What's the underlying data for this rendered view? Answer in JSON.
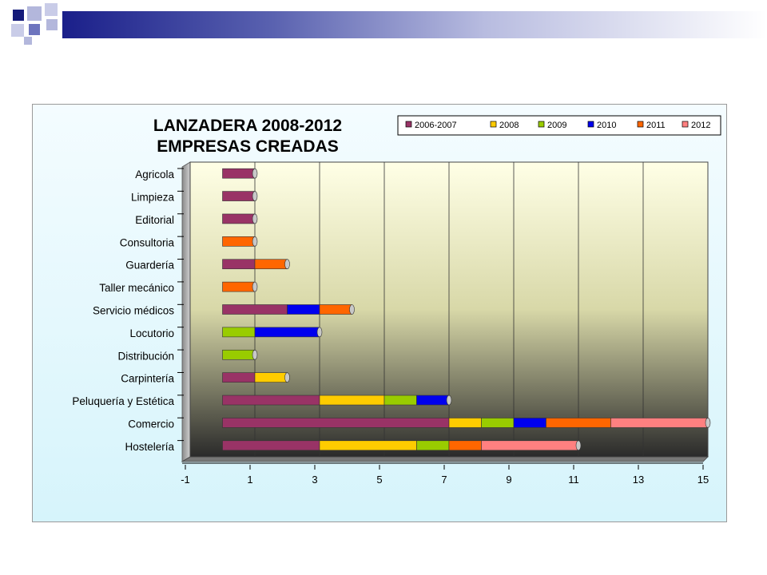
{
  "chart_data": {
    "type": "bar",
    "orientation": "horizontal",
    "stacked": true,
    "title": [
      "LANZADERA 2008-2012",
      "EMPRESAS CREADAS"
    ],
    "xlim": [
      -1,
      15
    ],
    "xticks": [
      "-1",
      "1",
      "3",
      "5",
      "7",
      "9",
      "11",
      "13",
      "15"
    ],
    "grid": true,
    "legend_position": "top-right",
    "categories": [
      "Agricola",
      "Limpieza",
      "Editorial",
      "Consultoria",
      "Guardería",
      "Taller mecánico",
      "Servicio médicos",
      "Locutorio",
      "Distribución",
      "Carpintería",
      "Peluquería y Estética",
      "Comercio",
      "Hostelería"
    ],
    "series": [
      {
        "name": "2006-2007",
        "color": "#993366",
        "values": [
          1,
          1,
          1,
          0,
          1,
          0,
          2,
          0,
          0,
          1,
          3,
          7,
          3
        ]
      },
      {
        "name": "2008",
        "color": "#ffcc00",
        "values": [
          0,
          0,
          0,
          0,
          0,
          0,
          0,
          0,
          0,
          1,
          2,
          1,
          3
        ]
      },
      {
        "name": "2009",
        "color": "#99cc00",
        "values": [
          0,
          0,
          0,
          0,
          0,
          0,
          0,
          1,
          1,
          0,
          1,
          1,
          1
        ]
      },
      {
        "name": "2010",
        "color": "#0000ee",
        "values": [
          0,
          0,
          0,
          0,
          0,
          0,
          1,
          2,
          0,
          0,
          1,
          1,
          0
        ]
      },
      {
        "name": "2011",
        "color": "#ff6600",
        "values": [
          0,
          0,
          0,
          1,
          1,
          1,
          1,
          0,
          0,
          0,
          0,
          2,
          1
        ]
      },
      {
        "name": "2012",
        "color": "#ff8080",
        "values": [
          0,
          0,
          0,
          0,
          0,
          0,
          0,
          0,
          0,
          0,
          0,
          3,
          3
        ]
      }
    ]
  }
}
